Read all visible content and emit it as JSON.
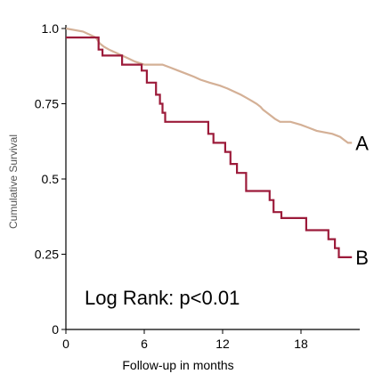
{
  "chart_data": {
    "type": "line",
    "subtype": "kaplan-meier step",
    "title": "",
    "xlabel": "Follow-up in months",
    "ylabel": "Cumulative Survival",
    "xlim": [
      0,
      22.5
    ],
    "ylim": [
      0,
      1.0
    ],
    "x_ticks": [
      "0",
      "6",
      "12",
      "18"
    ],
    "x_tick_values": [
      0,
      6,
      12,
      18
    ],
    "y_ticks": [
      "0",
      "0.25",
      "0.5",
      "0.75",
      "1.0"
    ],
    "y_tick_values": [
      0,
      0.25,
      0.5,
      0.75,
      1.0
    ],
    "grid": false,
    "annotation": "Log Rank: p<0.01",
    "series": [
      {
        "name": "A",
        "color": "#d4b096",
        "points": [
          [
            0,
            1.0
          ],
          [
            1.3,
            0.99
          ],
          [
            1.8,
            0.98
          ],
          [
            2.3,
            0.97
          ],
          [
            2.6,
            0.95
          ],
          [
            2.9,
            0.94
          ],
          [
            3.3,
            0.93
          ],
          [
            3.8,
            0.92
          ],
          [
            4.3,
            0.91
          ],
          [
            4.8,
            0.9
          ],
          [
            5.3,
            0.89
          ],
          [
            6.0,
            0.88
          ],
          [
            7.4,
            0.88
          ],
          [
            8.0,
            0.87
          ],
          [
            8.6,
            0.86
          ],
          [
            9.2,
            0.85
          ],
          [
            9.8,
            0.84
          ],
          [
            10.3,
            0.83
          ],
          [
            11.0,
            0.82
          ],
          [
            11.8,
            0.81
          ],
          [
            12.4,
            0.8
          ],
          [
            12.9,
            0.79
          ],
          [
            13.4,
            0.78
          ],
          [
            13.8,
            0.77
          ],
          [
            14.2,
            0.76
          ],
          [
            14.6,
            0.75
          ],
          [
            14.9,
            0.74
          ],
          [
            15.1,
            0.73
          ],
          [
            15.4,
            0.72
          ],
          [
            15.7,
            0.71
          ],
          [
            16.0,
            0.7
          ],
          [
            16.4,
            0.69
          ],
          [
            17.2,
            0.69
          ],
          [
            18.0,
            0.68
          ],
          [
            18.6,
            0.67
          ],
          [
            19.2,
            0.66
          ],
          [
            20.4,
            0.65
          ],
          [
            21.0,
            0.64
          ],
          [
            21.3,
            0.63
          ],
          [
            21.6,
            0.62
          ],
          [
            21.9,
            0.62
          ]
        ]
      },
      {
        "name": "B",
        "color": "#9c1b3a",
        "points": [
          [
            0,
            0.97
          ],
          [
            2.5,
            0.97
          ],
          [
            2.5,
            0.93
          ],
          [
            2.8,
            0.93
          ],
          [
            2.8,
            0.91
          ],
          [
            4.3,
            0.91
          ],
          [
            4.3,
            0.88
          ],
          [
            5.8,
            0.88
          ],
          [
            5.8,
            0.86
          ],
          [
            6.2,
            0.86
          ],
          [
            6.2,
            0.82
          ],
          [
            6.9,
            0.82
          ],
          [
            6.9,
            0.78
          ],
          [
            7.2,
            0.78
          ],
          [
            7.2,
            0.75
          ],
          [
            7.4,
            0.75
          ],
          [
            7.4,
            0.72
          ],
          [
            7.6,
            0.72
          ],
          [
            7.6,
            0.69
          ],
          [
            10.9,
            0.69
          ],
          [
            10.9,
            0.65
          ],
          [
            11.3,
            0.65
          ],
          [
            11.3,
            0.62
          ],
          [
            12.2,
            0.62
          ],
          [
            12.2,
            0.59
          ],
          [
            12.6,
            0.59
          ],
          [
            12.6,
            0.55
          ],
          [
            13.1,
            0.55
          ],
          [
            13.1,
            0.52
          ],
          [
            13.8,
            0.52
          ],
          [
            13.8,
            0.46
          ],
          [
            15.6,
            0.46
          ],
          [
            15.6,
            0.43
          ],
          [
            15.9,
            0.43
          ],
          [
            15.9,
            0.39
          ],
          [
            16.5,
            0.39
          ],
          [
            16.5,
            0.37
          ],
          [
            18.4,
            0.37
          ],
          [
            18.4,
            0.33
          ],
          [
            20.1,
            0.33
          ],
          [
            20.1,
            0.3
          ],
          [
            20.6,
            0.3
          ],
          [
            20.6,
            0.27
          ],
          [
            20.9,
            0.27
          ],
          [
            20.9,
            0.24
          ],
          [
            21.9,
            0.24
          ]
        ]
      }
    ]
  }
}
